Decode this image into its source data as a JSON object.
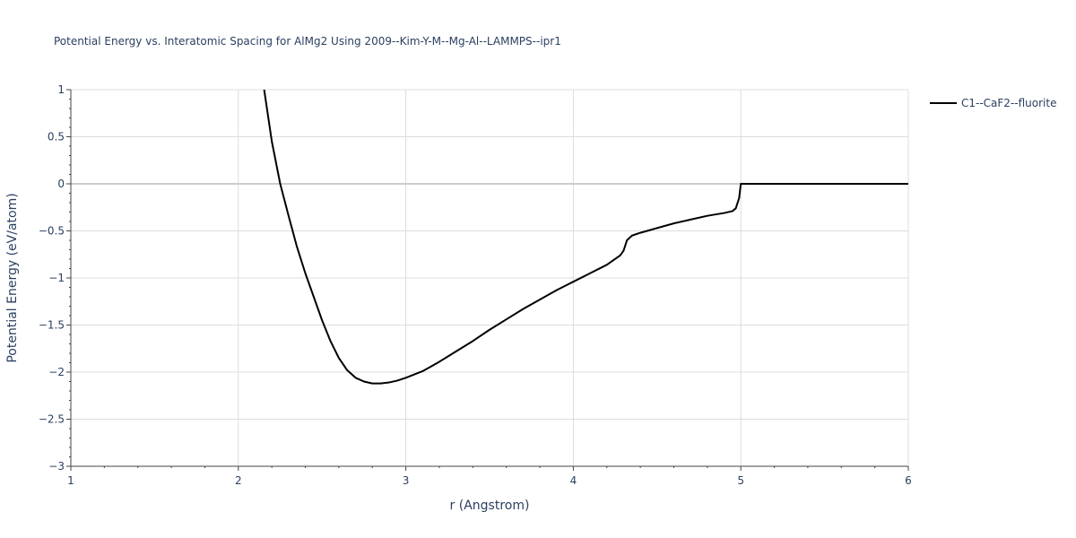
{
  "chart_data": {
    "type": "line",
    "title": "Potential Energy vs. Interatomic Spacing for AlMg2 Using 2009--Kim-Y-M--Mg-Al--LAMMPS--ipr1",
    "xlabel": "r (Angstrom)",
    "ylabel": "Potential Energy (eV/atom)",
    "xlim": [
      1,
      6
    ],
    "ylim": [
      -3,
      1
    ],
    "xticks": [
      1,
      2,
      3,
      4,
      5,
      6
    ],
    "xtick_labels": [
      "1",
      "2",
      "3",
      "4",
      "5",
      "6"
    ],
    "yticks": [
      1,
      0.5,
      0,
      -0.5,
      -1,
      -1.5,
      -2,
      -2.5,
      -3
    ],
    "ytick_labels": [
      "1",
      "0.5",
      "0",
      "−0.5",
      "−1",
      "−1.5",
      "−2",
      "−2.5",
      "−3"
    ],
    "grid": true,
    "legend_position": "top-right",
    "series": [
      {
        "name": "C1--CaF2--fluorite",
        "color": "#000000",
        "x": [
          2.15,
          2.2,
          2.25,
          2.3,
          2.35,
          2.4,
          2.45,
          2.5,
          2.55,
          2.6,
          2.65,
          2.7,
          2.75,
          2.8,
          2.85,
          2.9,
          2.95,
          3.0,
          3.1,
          3.2,
          3.3,
          3.4,
          3.5,
          3.6,
          3.7,
          3.8,
          3.9,
          4.0,
          4.1,
          4.2,
          4.28,
          4.3,
          4.32,
          4.35,
          4.4,
          4.5,
          4.6,
          4.7,
          4.8,
          4.9,
          4.95,
          4.97,
          4.99,
          5.0,
          5.5,
          6.0
        ],
        "y": [
          1.05,
          0.45,
          0.0,
          -0.34,
          -0.67,
          -0.95,
          -1.2,
          -1.45,
          -1.67,
          -1.85,
          -1.98,
          -2.06,
          -2.1,
          -2.12,
          -2.12,
          -2.11,
          -2.09,
          -2.06,
          -1.99,
          -1.89,
          -1.78,
          -1.67,
          -1.55,
          -1.44,
          -1.33,
          -1.23,
          -1.13,
          -1.04,
          -0.95,
          -0.86,
          -0.76,
          -0.71,
          -0.6,
          -0.55,
          -0.52,
          -0.47,
          -0.42,
          -0.38,
          -0.34,
          -0.31,
          -0.29,
          -0.26,
          -0.15,
          0.0,
          0.0,
          0.0
        ]
      }
    ]
  }
}
